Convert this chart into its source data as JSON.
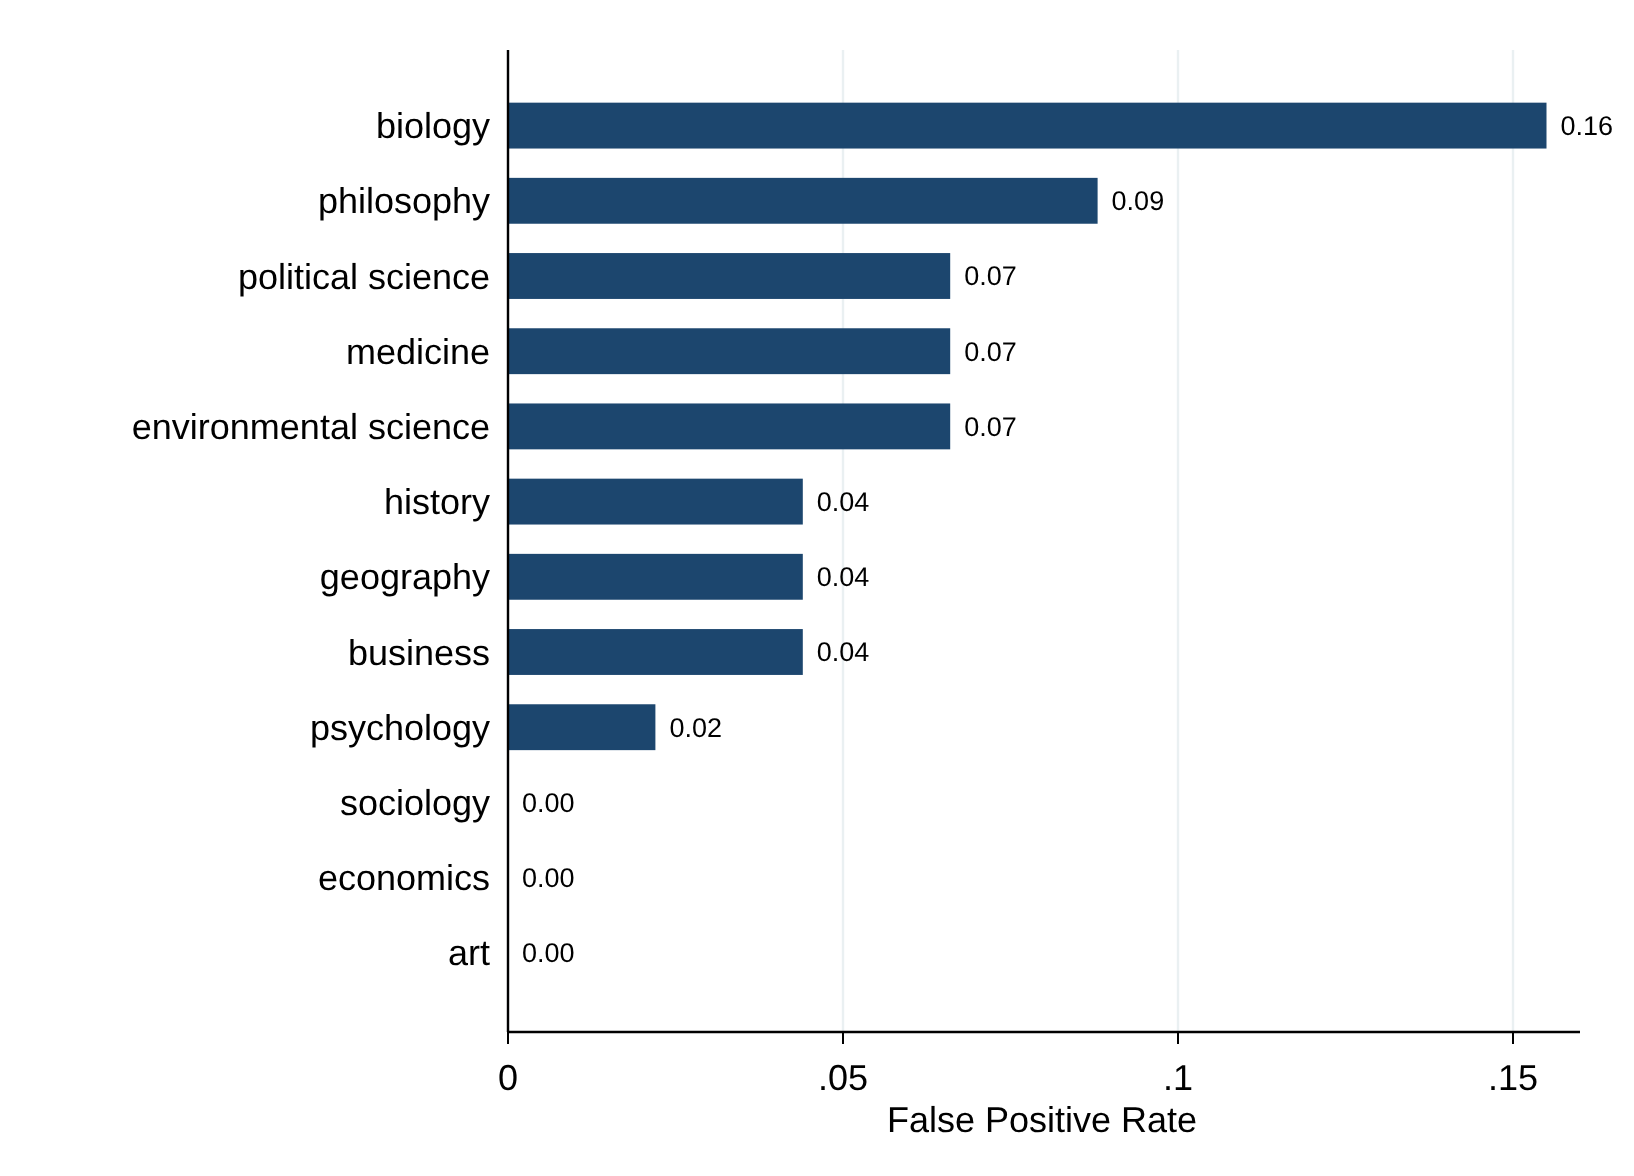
{
  "chart_data": {
    "type": "bar",
    "orientation": "horizontal",
    "xlabel": "False Positive Rate",
    "categories": [
      "biology",
      "philosophy",
      "political science",
      "medicine",
      "environmental science",
      "history",
      "geography",
      "business",
      "psychology",
      "sociology",
      "economics",
      "art"
    ],
    "values": [
      0.155,
      0.088,
      0.066,
      0.066,
      0.066,
      0.044,
      0.044,
      0.044,
      0.022,
      0,
      0,
      0
    ],
    "value_labels": [
      "0.16",
      "0.09",
      "0.07",
      "0.07",
      "0.07",
      "0.04",
      "0.04",
      "0.04",
      "0.02",
      "0.00",
      "0.00",
      "0.00"
    ],
    "color": "#1c466e",
    "xlim": [
      0,
      0.16
    ],
    "xticks": [
      {
        "value": 0,
        "label": "0"
      },
      {
        "value": 0.05,
        "label": ".05"
      },
      {
        "value": 0.1,
        "label": ".1"
      },
      {
        "value": 0.15,
        "label": ".15"
      }
    ],
    "grid": "x"
  }
}
